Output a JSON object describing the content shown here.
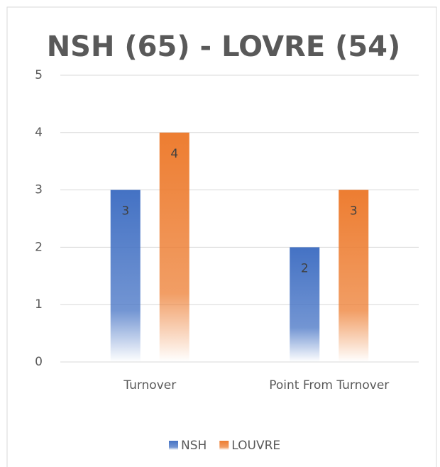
{
  "chart_data": {
    "type": "bar",
    "title": "NSH (65) - LOVRE (54)",
    "categories": [
      "Turnover",
      "Point From Turnover"
    ],
    "series": [
      {
        "name": "NSH",
        "color": "#4472c4",
        "values": [
          3,
          2
        ]
      },
      {
        "name": "LOUVRE",
        "color": "#ed7d31",
        "values": [
          4,
          3
        ]
      }
    ],
    "ylim": [
      0,
      5
    ],
    "yticks": [
      0,
      1,
      2,
      3,
      4,
      5
    ],
    "grid": true,
    "legend": "bottom"
  }
}
